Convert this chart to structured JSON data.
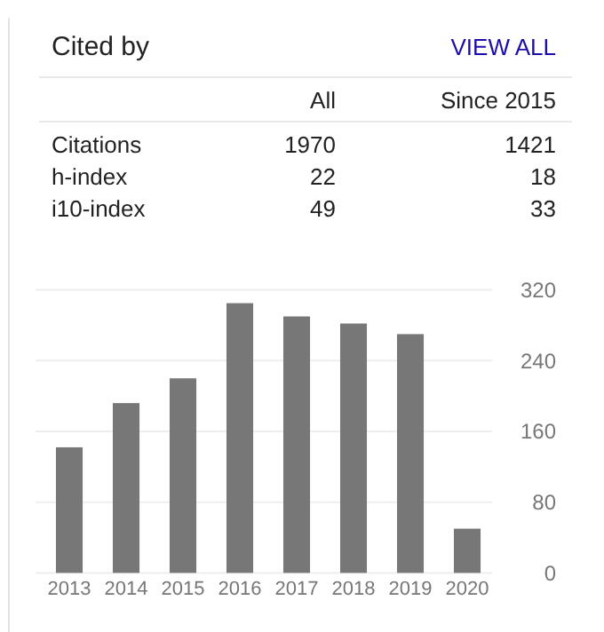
{
  "chart_data": {
    "type": "bar",
    "title": "Cited by",
    "annotations": [
      "VIEW ALL",
      "All",
      "Since 2015",
      "Citations",
      "1970",
      "1421",
      "h-index",
      "22",
      "18",
      "i10-index",
      "49",
      "33"
    ],
    "categories": [
      "2013",
      "2014",
      "2015",
      "2016",
      "2017",
      "2018",
      "2019",
      "2020"
    ],
    "values": [
      142,
      192,
      220,
      305,
      290,
      282,
      270,
      50
    ],
    "color": "#777777",
    "ylim": [
      0,
      320
    ],
    "yticks": [
      0,
      80,
      160,
      240,
      320
    ],
    "grid": "y"
  }
}
